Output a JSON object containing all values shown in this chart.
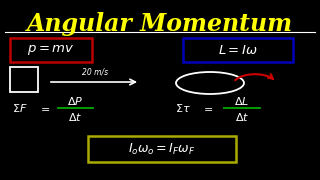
{
  "background_color": "#000000",
  "title": "Angular Momentum",
  "title_color": "#FFFF00",
  "line_color": "#FFFFFF",
  "formula_color": "#FFFFFF",
  "red_box_color": "#BB0000",
  "blue_box_color": "#0000BB",
  "yellow_box_color": "#AAAA00",
  "green_line_color": "#00AA00",
  "red_arrow_color": "#CC0000"
}
